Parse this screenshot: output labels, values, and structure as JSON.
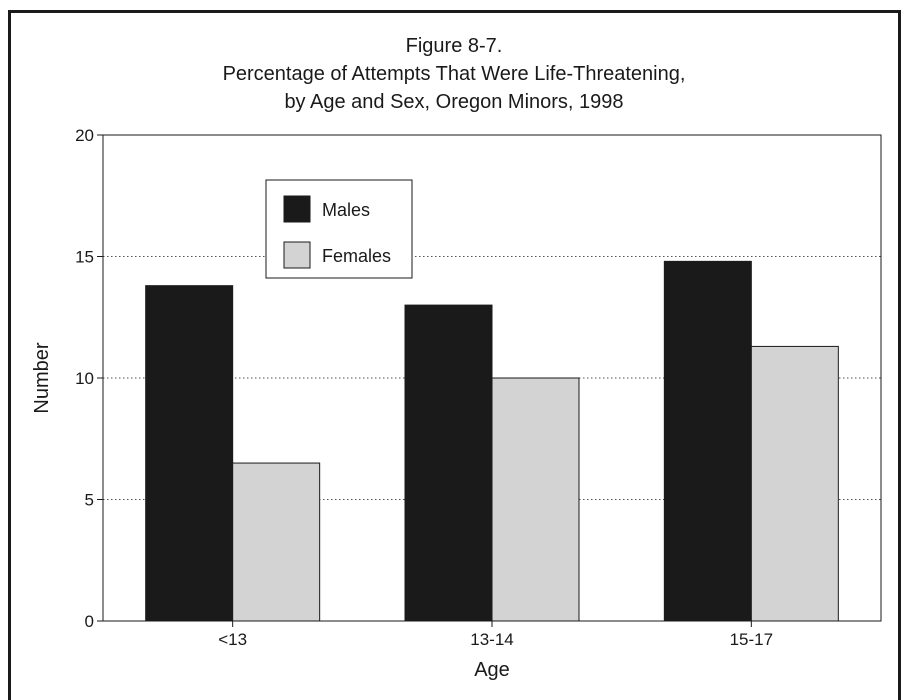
{
  "chart_data": {
    "type": "bar",
    "title_lines": [
      "Figure 8-7.",
      "Percentage of Attempts That Were Life-Threatening,",
      "by Age and Sex, Oregon Minors, 1998"
    ],
    "categories": [
      "<13",
      "13-14",
      "15-17"
    ],
    "series": [
      {
        "name": "Males",
        "values": [
          13.8,
          13.0,
          14.8
        ],
        "color": "#1a1a1a"
      },
      {
        "name": "Females",
        "values": [
          6.5,
          10.0,
          11.3
        ],
        "color": "#d3d3d3"
      }
    ],
    "xlabel": "Age",
    "ylabel": "Number",
    "ylim": [
      0,
      20
    ],
    "yticks": [
      0,
      5,
      10,
      15,
      20
    ],
    "grid": "horizontal-dotted",
    "legend_position": "top-left"
  }
}
